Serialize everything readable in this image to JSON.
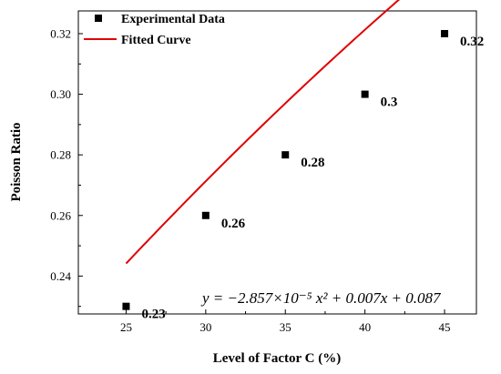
{
  "chart_data": {
    "type": "scatter",
    "xlabel": "Level of Factor C (%)",
    "ylabel": "Poisson Ratio",
    "xlim": [
      22,
      47
    ],
    "ylim": [
      0.2275,
      0.3275
    ],
    "x_ticks": [
      "25",
      "30",
      "35",
      "40",
      "45"
    ],
    "y_ticks": [
      "0.24",
      "0.26",
      "0.28",
      "0.30",
      "0.32"
    ],
    "x_tick_values": [
      25,
      30,
      35,
      40,
      45
    ],
    "y_tick_values": [
      0.24,
      0.26,
      0.28,
      0.3,
      0.32
    ],
    "series": [
      {
        "name": "Experimental Data",
        "kind": "scatter",
        "color": "#000000",
        "x": [
          25,
          30,
          35,
          40,
          45
        ],
        "y": [
          0.23,
          0.26,
          0.28,
          0.3,
          0.32
        ],
        "labels": [
          "0.23",
          "0.26",
          "0.28",
          "0.3",
          "0.32"
        ]
      },
      {
        "name": "Fitted Curve",
        "kind": "line",
        "color": "#e00000",
        "coefficients": {
          "a": -2.857e-05,
          "b": 0.007,
          "c": 0.087
        },
        "x_range": [
          25,
          45
        ]
      }
    ],
    "equation": "y = −2.857×10⁻⁵ x² + 0.007x + 0.087",
    "legend_position": "top-left",
    "grid": false
  }
}
